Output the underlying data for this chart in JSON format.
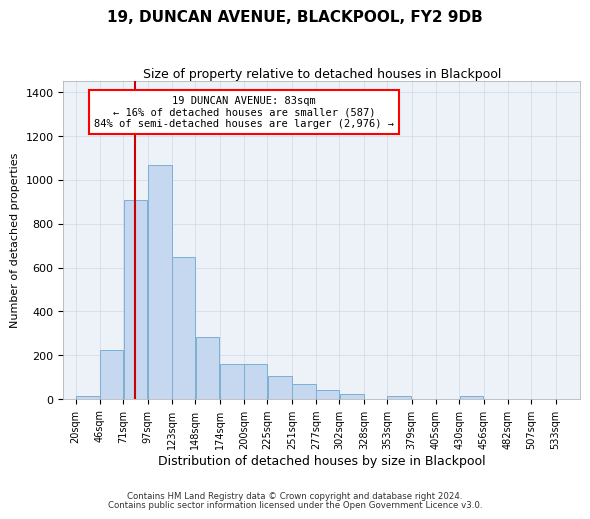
{
  "title": "19, DUNCAN AVENUE, BLACKPOOL, FY2 9DB",
  "subtitle": "Size of property relative to detached houses in Blackpool",
  "xlabel": "Distribution of detached houses by size in Blackpool",
  "ylabel": "Number of detached properties",
  "bar_values": [
    15,
    225,
    910,
    1070,
    650,
    285,
    160,
    160,
    105,
    70,
    40,
    25,
    0,
    15,
    0,
    0,
    15
  ],
  "bin_edges": [
    20,
    46,
    71,
    97,
    123,
    148,
    174,
    200,
    225,
    251,
    277,
    302,
    328,
    353,
    379,
    405,
    430,
    456
  ],
  "bin_labels": [
    "20sqm",
    "46sqm",
    "71sqm",
    "97sqm",
    "123sqm",
    "148sqm",
    "174sqm",
    "200sqm",
    "225sqm",
    "251sqm",
    "277sqm",
    "302sqm",
    "328sqm",
    "353sqm",
    "379sqm",
    "405sqm",
    "430sqm",
    "456sqm",
    "482sqm",
    "507sqm",
    "533sqm"
  ],
  "all_tick_positions": [
    20,
    46,
    71,
    97,
    123,
    148,
    174,
    200,
    225,
    251,
    277,
    302,
    328,
    353,
    379,
    405,
    430,
    456,
    482,
    507,
    533
  ],
  "xlim": [
    7,
    559
  ],
  "property_line_x": 83,
  "annotation_text": "19 DUNCAN AVENUE: 83sqm\n← 16% of detached houses are smaller (587)\n84% of semi-detached houses are larger (2,976) →",
  "bar_facecolor": "#c5d8f0",
  "bar_edgecolor": "#7aafd4",
  "redline_color": "#cc0000",
  "ylim": [
    0,
    1450
  ],
  "yticks": [
    0,
    200,
    400,
    600,
    800,
    1000,
    1200,
    1400
  ],
  "grid_color": "#d0d8e8",
  "bg_color": "#edf2f9",
  "footer1": "Contains HM Land Registry data © Crown copyright and database right 2024.",
  "footer2": "Contains public sector information licensed under the Open Government Licence v3.0."
}
